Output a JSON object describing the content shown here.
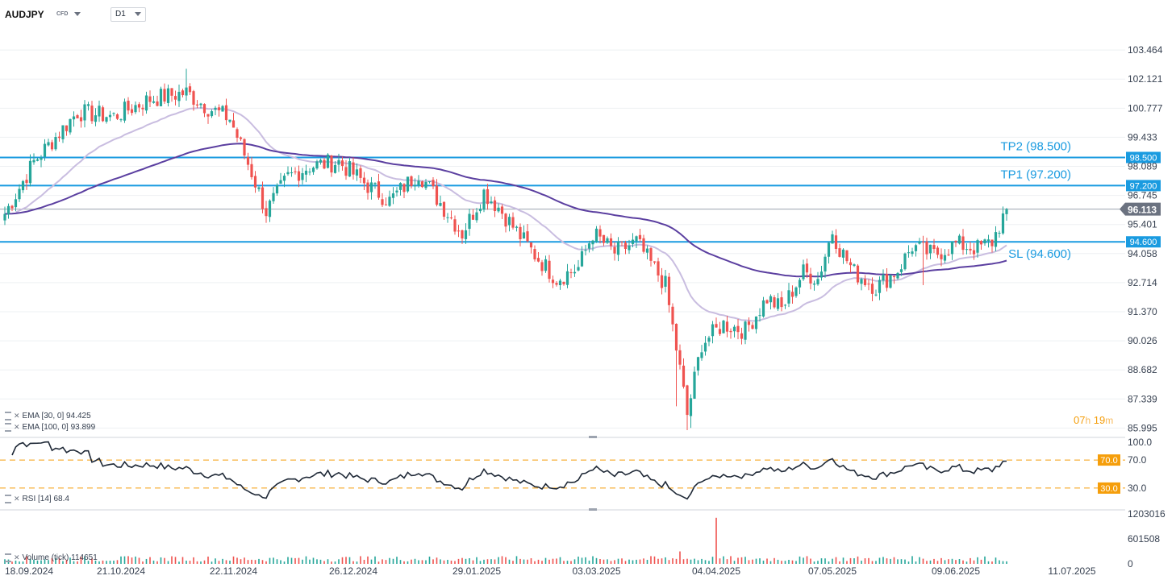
{
  "header": {
    "symbol": "AUDJPY",
    "instrument_type": "CFD",
    "timeframe": "D1"
  },
  "countdown": {
    "hours": "07",
    "h_unit": "h",
    "minutes": "19",
    "m_unit": "m"
  },
  "colors": {
    "up": "#26a69a",
    "down": "#ef5350",
    "ema30": "#c9bde0",
    "ema100": "#5b3fa0",
    "level_line": "#1a9be0",
    "current_price": "#6b7280",
    "rsi_level": "#f59e0b"
  },
  "indicators": {
    "ema30": {
      "label": "EMA",
      "params": "[30, 0]",
      "value": "94.425"
    },
    "ema100": {
      "label": "EMA",
      "params": "[100, 0]",
      "value": "93.899"
    },
    "rsi": {
      "label": "RSI",
      "params": "[14]",
      "value": "68.4"
    },
    "volume": {
      "label": "Volume",
      "params": "(tick)",
      "value": "114651"
    }
  },
  "chart_data": [
    {
      "type": "candlestick",
      "pane": "price",
      "ylim": [
        85.6,
        104.4
      ],
      "y_ticks": [
        "103.464",
        "102.121",
        "100.777",
        "99.433",
        "98.089",
        "96.745",
        "95.401",
        "94.058",
        "92.714",
        "91.370",
        "90.026",
        "88.682",
        "87.339",
        "85.995"
      ],
      "x_ticks": [
        "18.09.2024",
        "21.10.2024",
        "22.11.2024",
        "26.12.2024",
        "29.01.2025",
        "03.03.2025",
        "04.04.2025",
        "07.05.2025",
        "09.06.2025",
        "11.07.2025"
      ],
      "current_price": {
        "value": 96.113,
        "label": "96.113"
      },
      "levels": [
        {
          "value": 98.5,
          "label": "TP2 (98.500)",
          "tag": "98.500"
        },
        {
          "value": 97.2,
          "label": "TP1 (97.200)",
          "tag": "97.200"
        },
        {
          "value": 94.6,
          "label": "SL (94.600)",
          "tag": "94.600"
        }
      ],
      "close_anchors": [
        [
          0,
          95.9
        ],
        [
          8,
          98.3
        ],
        [
          20,
          100.6
        ],
        [
          30,
          100.4
        ],
        [
          40,
          101.2
        ],
        [
          50,
          101.5
        ],
        [
          56,
          100.8
        ],
        [
          62,
          100.3
        ],
        [
          68,
          97.8
        ],
        [
          72,
          96.0
        ],
        [
          78,
          97.6
        ],
        [
          84,
          98.1
        ],
        [
          92,
          98.3
        ],
        [
          100,
          97.2
        ],
        [
          106,
          96.5
        ],
        [
          114,
          97.8
        ],
        [
          120,
          96.4
        ],
        [
          126,
          95.0
        ],
        [
          132,
          96.9
        ],
        [
          136,
          96.2
        ],
        [
          140,
          95.3
        ],
        [
          146,
          94.0
        ],
        [
          152,
          92.9
        ],
        [
          158,
          93.4
        ],
        [
          162,
          95.0
        ],
        [
          168,
          94.1
        ],
        [
          174,
          94.6
        ],
        [
          182,
          92.6
        ],
        [
          186,
          88.7
        ],
        [
          188,
          86.6
        ],
        [
          192,
          89.9
        ],
        [
          198,
          90.8
        ],
        [
          204,
          90.5
        ],
        [
          210,
          92.0
        ],
        [
          214,
          91.5
        ],
        [
          220,
          93.2
        ],
        [
          224,
          92.9
        ],
        [
          228,
          95.1
        ],
        [
          230,
          94.3
        ],
        [
          234,
          93.2
        ],
        [
          240,
          92.5
        ],
        [
          246,
          93.3
        ],
        [
          250,
          94.4
        ],
        [
          256,
          94.0
        ],
        [
          262,
          94.5
        ],
        [
          268,
          94.3
        ],
        [
          272,
          94.6
        ],
        [
          276,
          96.1
        ]
      ],
      "wick_spikes": [
        {
          "index": 188,
          "low": 85.9
        },
        {
          "index": 185,
          "low": 87.0
        },
        {
          "index": 189,
          "low": 86.0
        },
        {
          "index": 50,
          "high": 102.6
        },
        {
          "index": 253,
          "low": 92.6
        }
      ]
    },
    {
      "type": "line",
      "pane": "rsi",
      "ylim": [
        0,
        100
      ],
      "y_ticks": [
        "100.0",
        "70.0",
        "30.0"
      ],
      "levels": [
        {
          "value": 70,
          "tag": "70.0"
        },
        {
          "value": 30,
          "tag": "30.0"
        }
      ]
    },
    {
      "type": "bar",
      "pane": "volume",
      "y_ticks": [
        "1203016",
        "601508",
        "0"
      ],
      "ylim": [
        0,
        1203016
      ],
      "typical_value": 150000,
      "spikes": [
        {
          "index": 196,
          "value": 1110000
        },
        {
          "index": 186,
          "value": 300000
        }
      ]
    }
  ]
}
